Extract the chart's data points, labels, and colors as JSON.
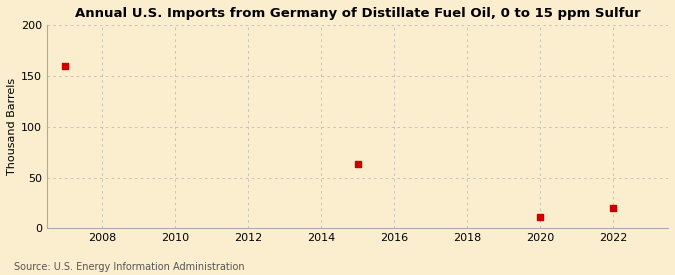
{
  "title": "Annual U.S. Imports from Germany of Distillate Fuel Oil, 0 to 15 ppm Sulfur",
  "ylabel": "Thousand Barrels",
  "source": "Source: U.S. Energy Information Administration",
  "background_color": "#faeece",
  "data_years": [
    2007,
    2015,
    2020,
    2022
  ],
  "data_values": [
    160,
    63,
    11,
    20
  ],
  "xlim": [
    2006.5,
    2023.5
  ],
  "ylim": [
    0,
    200
  ],
  "yticks": [
    0,
    50,
    100,
    150,
    200
  ],
  "xticks": [
    2008,
    2010,
    2012,
    2014,
    2016,
    2018,
    2020,
    2022
  ],
  "marker_color": "#cc0000",
  "marker_size": 4,
  "grid_color": "#bbbbbb",
  "title_fontsize": 9.5,
  "axis_fontsize": 8,
  "tick_fontsize": 8,
  "source_fontsize": 7
}
